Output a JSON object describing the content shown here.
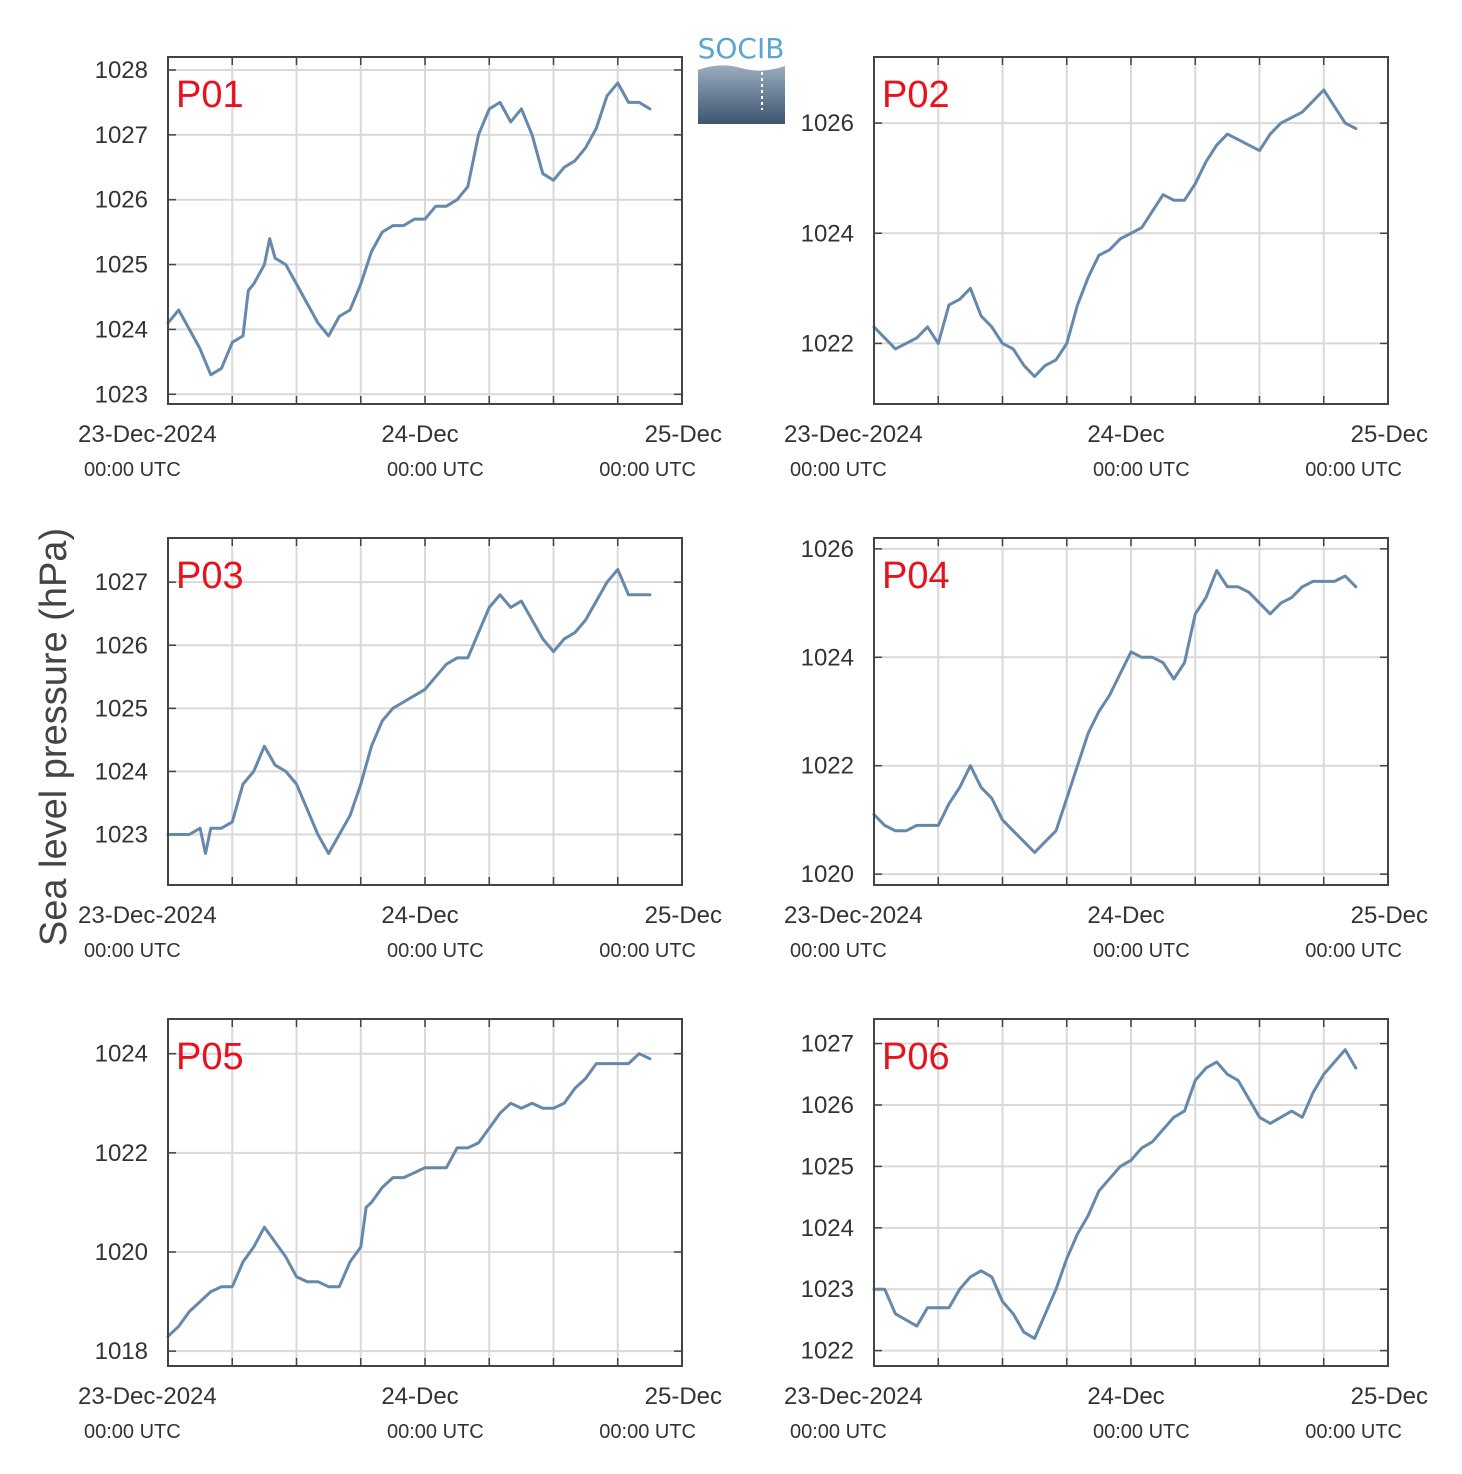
{
  "logo": {
    "text": "SOCIB"
  },
  "ylabel": "Sea level pressure (hPa)",
  "style": {
    "line_color": "#6688aa",
    "station_label_color": "#e8121c",
    "grid_color": "#d9d9d9",
    "axis_color": "#444444",
    "text_color": "#333333"
  },
  "x_ticks": [
    {
      "label": "23-Dec-2024",
      "sub": "00:00 UTC"
    },
    {
      "label": "24-Dec",
      "sub": "00:00 UTC"
    },
    {
      "label": "25-Dec",
      "sub": "00:00 UTC"
    }
  ],
  "chart_data": [
    {
      "type": "line",
      "title": "P01",
      "x_unit": "hours since 23-Dec-2024 00:00 UTC",
      "xlim": [
        0,
        48
      ],
      "ylim": [
        1022.85,
        1028.2
      ],
      "yticks": [
        1023,
        1024,
        1025,
        1026,
        1027,
        1028
      ],
      "grid": true,
      "points": [
        [
          0,
          1024.1
        ],
        [
          1,
          1024.3
        ],
        [
          2,
          1024.0
        ],
        [
          3,
          1023.7
        ],
        [
          4,
          1023.3
        ],
        [
          5,
          1023.4
        ],
        [
          6,
          1023.8
        ],
        [
          7,
          1023.9
        ],
        [
          7.5,
          1024.6
        ],
        [
          8,
          1024.7
        ],
        [
          9,
          1025.0
        ],
        [
          9.5,
          1025.4
        ],
        [
          10,
          1025.1
        ],
        [
          11,
          1025.0
        ],
        [
          12,
          1024.7
        ],
        [
          13,
          1024.4
        ],
        [
          14,
          1024.1
        ],
        [
          15,
          1023.9
        ],
        [
          16,
          1024.2
        ],
        [
          17,
          1024.3
        ],
        [
          18,
          1024.7
        ],
        [
          19,
          1025.2
        ],
        [
          20,
          1025.5
        ],
        [
          21,
          1025.6
        ],
        [
          22,
          1025.6
        ],
        [
          23,
          1025.7
        ],
        [
          24,
          1025.7
        ],
        [
          25,
          1025.9
        ],
        [
          26,
          1025.9
        ],
        [
          27,
          1026.0
        ],
        [
          28,
          1026.2
        ],
        [
          29,
          1027.0
        ],
        [
          30,
          1027.4
        ],
        [
          31,
          1027.5
        ],
        [
          32,
          1027.2
        ],
        [
          33,
          1027.4
        ],
        [
          34,
          1027.0
        ],
        [
          35,
          1026.4
        ],
        [
          36,
          1026.3
        ],
        [
          37,
          1026.5
        ],
        [
          38,
          1026.6
        ],
        [
          39,
          1026.8
        ],
        [
          40,
          1027.1
        ],
        [
          41,
          1027.6
        ],
        [
          42,
          1027.8
        ],
        [
          43,
          1027.5
        ],
        [
          44,
          1027.5
        ],
        [
          45,
          1027.4
        ]
      ]
    },
    {
      "type": "line",
      "title": "P02",
      "x_unit": "hours since 23-Dec-2024 00:00 UTC",
      "xlim": [
        0,
        48
      ],
      "ylim": [
        1020.9,
        1027.2
      ],
      "yticks": [
        1022,
        1024,
        1026
      ],
      "grid": true,
      "points": [
        [
          0,
          1022.3
        ],
        [
          1,
          1022.1
        ],
        [
          2,
          1021.9
        ],
        [
          3,
          1022.0
        ],
        [
          4,
          1022.1
        ],
        [
          5,
          1022.3
        ],
        [
          6,
          1022.0
        ],
        [
          7,
          1022.7
        ],
        [
          8,
          1022.8
        ],
        [
          9,
          1023.0
        ],
        [
          10,
          1022.5
        ],
        [
          11,
          1022.3
        ],
        [
          12,
          1022.0
        ],
        [
          13,
          1021.9
        ],
        [
          14,
          1021.6
        ],
        [
          15,
          1021.4
        ],
        [
          16,
          1021.6
        ],
        [
          17,
          1021.7
        ],
        [
          18,
          1022.0
        ],
        [
          19,
          1022.7
        ],
        [
          20,
          1023.2
        ],
        [
          21,
          1023.6
        ],
        [
          22,
          1023.7
        ],
        [
          23,
          1023.9
        ],
        [
          24,
          1024.0
        ],
        [
          25,
          1024.1
        ],
        [
          26,
          1024.4
        ],
        [
          27,
          1024.7
        ],
        [
          28,
          1024.6
        ],
        [
          29,
          1024.6
        ],
        [
          30,
          1024.9
        ],
        [
          31,
          1025.3
        ],
        [
          32,
          1025.6
        ],
        [
          33,
          1025.8
        ],
        [
          34,
          1025.7
        ],
        [
          35,
          1025.6
        ],
        [
          36,
          1025.5
        ],
        [
          37,
          1025.8
        ],
        [
          38,
          1026.0
        ],
        [
          39,
          1026.1
        ],
        [
          40,
          1026.2
        ],
        [
          41,
          1026.4
        ],
        [
          42,
          1026.6
        ],
        [
          43,
          1026.3
        ],
        [
          44,
          1026.0
        ],
        [
          45,
          1025.9
        ]
      ]
    },
    {
      "type": "line",
      "title": "P03",
      "x_unit": "hours since 23-Dec-2024 00:00 UTC",
      "xlim": [
        0,
        48
      ],
      "ylim": [
        1022.2,
        1027.7
      ],
      "yticks": [
        1023,
        1024,
        1025,
        1026,
        1027
      ],
      "grid": true,
      "points": [
        [
          0,
          1023.0
        ],
        [
          1,
          1023.0
        ],
        [
          2,
          1023.0
        ],
        [
          3,
          1023.1
        ],
        [
          3.5,
          1022.7
        ],
        [
          4,
          1023.1
        ],
        [
          5,
          1023.1
        ],
        [
          6,
          1023.2
        ],
        [
          7,
          1023.8
        ],
        [
          8,
          1024.0
        ],
        [
          9,
          1024.4
        ],
        [
          10,
          1024.1
        ],
        [
          11,
          1024.0
        ],
        [
          12,
          1023.8
        ],
        [
          13,
          1023.4
        ],
        [
          14,
          1023.0
        ],
        [
          15,
          1022.7
        ],
        [
          16,
          1023.0
        ],
        [
          17,
          1023.3
        ],
        [
          18,
          1023.8
        ],
        [
          19,
          1024.4
        ],
        [
          20,
          1024.8
        ],
        [
          21,
          1025.0
        ],
        [
          22,
          1025.1
        ],
        [
          23,
          1025.2
        ],
        [
          24,
          1025.3
        ],
        [
          25,
          1025.5
        ],
        [
          26,
          1025.7
        ],
        [
          27,
          1025.8
        ],
        [
          28,
          1025.8
        ],
        [
          29,
          1026.2
        ],
        [
          30,
          1026.6
        ],
        [
          31,
          1026.8
        ],
        [
          32,
          1026.6
        ],
        [
          33,
          1026.7
        ],
        [
          34,
          1026.4
        ],
        [
          35,
          1026.1
        ],
        [
          36,
          1025.9
        ],
        [
          37,
          1026.1
        ],
        [
          38,
          1026.2
        ],
        [
          39,
          1026.4
        ],
        [
          40,
          1026.7
        ],
        [
          41,
          1027.0
        ],
        [
          42,
          1027.2
        ],
        [
          43,
          1026.8
        ],
        [
          44,
          1026.8
        ],
        [
          45,
          1026.8
        ]
      ]
    },
    {
      "type": "line",
      "title": "P04",
      "x_unit": "hours since 23-Dec-2024 00:00 UTC",
      "xlim": [
        0,
        48
      ],
      "ylim": [
        1019.8,
        1026.2
      ],
      "yticks": [
        1020,
        1022,
        1024,
        1026
      ],
      "grid": true,
      "points": [
        [
          0,
          1021.1
        ],
        [
          1,
          1020.9
        ],
        [
          2,
          1020.8
        ],
        [
          3,
          1020.8
        ],
        [
          4,
          1020.9
        ],
        [
          5,
          1020.9
        ],
        [
          6,
          1020.9
        ],
        [
          7,
          1021.3
        ],
        [
          8,
          1021.6
        ],
        [
          9,
          1022.0
        ],
        [
          10,
          1021.6
        ],
        [
          11,
          1021.4
        ],
        [
          12,
          1021.0
        ],
        [
          13,
          1020.8
        ],
        [
          14,
          1020.6
        ],
        [
          15,
          1020.4
        ],
        [
          16,
          1020.6
        ],
        [
          17,
          1020.8
        ],
        [
          18,
          1021.4
        ],
        [
          19,
          1022.0
        ],
        [
          20,
          1022.6
        ],
        [
          21,
          1023.0
        ],
        [
          22,
          1023.3
        ],
        [
          23,
          1023.7
        ],
        [
          24,
          1024.1
        ],
        [
          25,
          1024.0
        ],
        [
          26,
          1024.0
        ],
        [
          27,
          1023.9
        ],
        [
          28,
          1023.6
        ],
        [
          29,
          1023.9
        ],
        [
          30,
          1024.8
        ],
        [
          31,
          1025.1
        ],
        [
          32,
          1025.6
        ],
        [
          33,
          1025.3
        ],
        [
          34,
          1025.3
        ],
        [
          35,
          1025.2
        ],
        [
          36,
          1025.0
        ],
        [
          37,
          1024.8
        ],
        [
          38,
          1025.0
        ],
        [
          39,
          1025.1
        ],
        [
          40,
          1025.3
        ],
        [
          41,
          1025.4
        ],
        [
          42,
          1025.4
        ],
        [
          43,
          1025.4
        ],
        [
          44,
          1025.5
        ],
        [
          45,
          1025.3
        ]
      ]
    },
    {
      "type": "line",
      "title": "P05",
      "x_unit": "hours since 23-Dec-2024 00:00 UTC",
      "xlim": [
        0,
        48
      ],
      "ylim": [
        1017.7,
        1024.7
      ],
      "yticks": [
        1018,
        1020,
        1022,
        1024
      ],
      "grid": true,
      "points": [
        [
          0,
          1018.3
        ],
        [
          1,
          1018.5
        ],
        [
          2,
          1018.8
        ],
        [
          3,
          1019.0
        ],
        [
          4,
          1019.2
        ],
        [
          5,
          1019.3
        ],
        [
          6,
          1019.3
        ],
        [
          7,
          1019.8
        ],
        [
          8,
          1020.1
        ],
        [
          9,
          1020.5
        ],
        [
          10,
          1020.2
        ],
        [
          11,
          1019.9
        ],
        [
          12,
          1019.5
        ],
        [
          13,
          1019.4
        ],
        [
          14,
          1019.4
        ],
        [
          15,
          1019.3
        ],
        [
          16,
          1019.3
        ],
        [
          17,
          1019.8
        ],
        [
          18,
          1020.1
        ],
        [
          18.5,
          1020.9
        ],
        [
          19,
          1021.0
        ],
        [
          20,
          1021.3
        ],
        [
          21,
          1021.5
        ],
        [
          22,
          1021.5
        ],
        [
          23,
          1021.6
        ],
        [
          24,
          1021.7
        ],
        [
          25,
          1021.7
        ],
        [
          26,
          1021.7
        ],
        [
          27,
          1022.1
        ],
        [
          28,
          1022.1
        ],
        [
          29,
          1022.2
        ],
        [
          30,
          1022.5
        ],
        [
          31,
          1022.8
        ],
        [
          32,
          1023.0
        ],
        [
          33,
          1022.9
        ],
        [
          34,
          1023.0
        ],
        [
          35,
          1022.9
        ],
        [
          36,
          1022.9
        ],
        [
          37,
          1023.0
        ],
        [
          38,
          1023.3
        ],
        [
          39,
          1023.5
        ],
        [
          40,
          1023.8
        ],
        [
          41,
          1023.8
        ],
        [
          42,
          1023.8
        ],
        [
          43,
          1023.8
        ],
        [
          44,
          1024.0
        ],
        [
          45,
          1023.9
        ]
      ]
    },
    {
      "type": "line",
      "title": "P06",
      "x_unit": "hours since 23-Dec-2024 00:00 UTC",
      "xlim": [
        0,
        48
      ],
      "ylim": [
        1021.75,
        1027.4
      ],
      "yticks": [
        1022,
        1023,
        1024,
        1025,
        1026,
        1027
      ],
      "grid": true,
      "points": [
        [
          0,
          1023.0
        ],
        [
          1,
          1023.0
        ],
        [
          2,
          1022.6
        ],
        [
          3,
          1022.5
        ],
        [
          4,
          1022.4
        ],
        [
          5,
          1022.7
        ],
        [
          6,
          1022.7
        ],
        [
          7,
          1022.7
        ],
        [
          8,
          1023.0
        ],
        [
          9,
          1023.2
        ],
        [
          10,
          1023.3
        ],
        [
          11,
          1023.2
        ],
        [
          12,
          1022.8
        ],
        [
          13,
          1022.6
        ],
        [
          14,
          1022.3
        ],
        [
          15,
          1022.2
        ],
        [
          16,
          1022.6
        ],
        [
          17,
          1023.0
        ],
        [
          18,
          1023.5
        ],
        [
          19,
          1023.9
        ],
        [
          20,
          1024.2
        ],
        [
          21,
          1024.6
        ],
        [
          22,
          1024.8
        ],
        [
          23,
          1025.0
        ],
        [
          24,
          1025.1
        ],
        [
          25,
          1025.3
        ],
        [
          26,
          1025.4
        ],
        [
          27,
          1025.6
        ],
        [
          28,
          1025.8
        ],
        [
          29,
          1025.9
        ],
        [
          30,
          1026.4
        ],
        [
          31,
          1026.6
        ],
        [
          32,
          1026.7
        ],
        [
          33,
          1026.5
        ],
        [
          34,
          1026.4
        ],
        [
          35,
          1026.1
        ],
        [
          36,
          1025.8
        ],
        [
          37,
          1025.7
        ],
        [
          38,
          1025.8
        ],
        [
          39,
          1025.9
        ],
        [
          40,
          1025.8
        ],
        [
          41,
          1026.2
        ],
        [
          42,
          1026.5
        ],
        [
          43,
          1026.7
        ],
        [
          44,
          1026.9
        ],
        [
          45,
          1026.6
        ]
      ]
    }
  ]
}
